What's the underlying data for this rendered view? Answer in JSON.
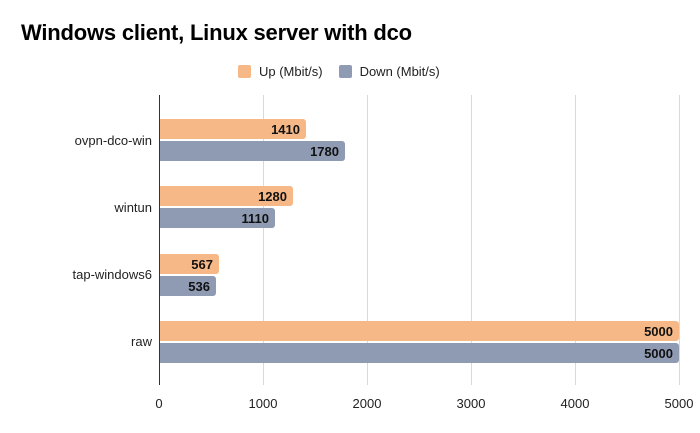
{
  "chart_data": {
    "type": "bar",
    "orientation": "horizontal",
    "title": "Windows client, Linux server with dco",
    "categories": [
      "ovpn-dco-win",
      "wintun",
      "tap-windows6",
      "raw"
    ],
    "series": [
      {
        "name": "Up (Mbit/s)",
        "color": "#f6b886",
        "values": [
          1410,
          1280,
          567,
          5000
        ]
      },
      {
        "name": "Down (Mbit/s)",
        "color": "#8e9bb3",
        "values": [
          1780,
          1110,
          536,
          5000
        ]
      }
    ],
    "xlabel": "",
    "ylabel": "",
    "xlim": [
      0,
      5000
    ],
    "xticks": [
      "0",
      "1000",
      "2000",
      "3000",
      "4000",
      "5000"
    ],
    "grid": true,
    "legend_position": "top",
    "data_labels": true
  },
  "legend": {
    "up": "Up (Mbit/s)",
    "down": "Down (Mbit/s)"
  }
}
